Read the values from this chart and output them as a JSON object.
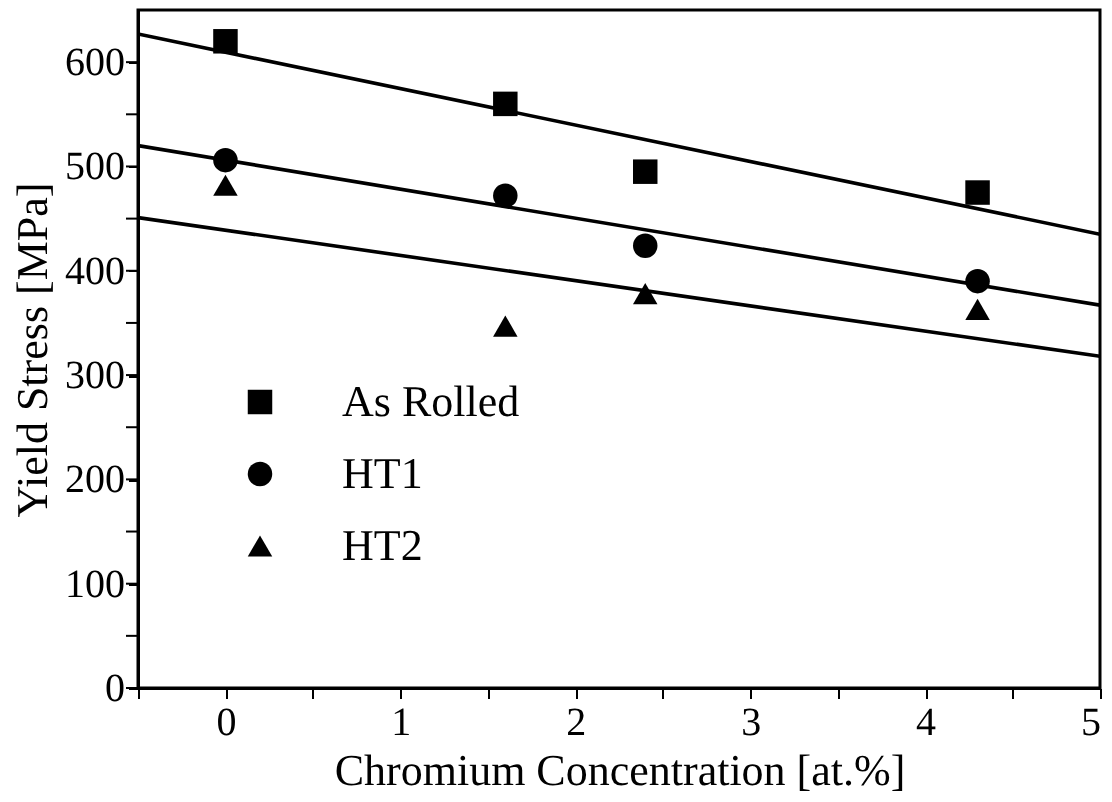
{
  "chart_data": {
    "type": "scatter",
    "xlabel": "Chromium Concentration [at.%]",
    "ylabel": "Yield Stress [MPa]",
    "xlim": [
      -0.5,
      5
    ],
    "ylim": [
      0,
      650
    ],
    "xticks": [
      {
        "value": -0.5,
        "label": null
      },
      0,
      {
        "value": 0.5,
        "label": null
      },
      1,
      {
        "value": 1.5,
        "label": null
      },
      2,
      {
        "value": 2.5,
        "label": null
      },
      3,
      {
        "value": 3.5,
        "label": null
      },
      4,
      {
        "value": 4.5,
        "label": null
      },
      5
    ],
    "yticks": [
      0,
      {
        "value": 50,
        "label": null
      },
      100,
      {
        "value": 150,
        "label": null
      },
      200,
      {
        "value": 250,
        "label": null
      },
      300,
      {
        "value": 350,
        "label": null
      },
      400,
      {
        "value": 450,
        "label": null
      },
      500,
      {
        "value": 550,
        "label": null
      },
      600
    ],
    "legend": "bottom left",
    "grid": false,
    "series": [
      {
        "name": "As Rolled",
        "color": "#000000",
        "marker": "square",
        "x": [
          0,
          1.6,
          2.4,
          4.3
        ],
        "values": [
          620,
          560,
          495,
          475
        ]
      },
      {
        "name": "HT1",
        "color": "#000000",
        "marker": "circle",
        "x": [
          0,
          1.6,
          2.4,
          4.3
        ],
        "values": [
          506,
          472,
          424,
          390
        ]
      },
      {
        "name": "HT2",
        "color": "#000000",
        "marker": "triangle",
        "x": [
          0,
          1.6,
          2.4,
          4.3
        ],
        "values": [
          482,
          347,
          378,
          363
        ]
      },
      {
        "type": "line",
        "color": "#000000",
        "marker": "none",
        "x": [
          -0.5,
          5
        ],
        "values": [
          627,
          435
        ]
      },
      {
        "type": "line",
        "color": "#000000",
        "marker": "none",
        "x": [
          -0.5,
          5
        ],
        "values": [
          520,
          367
        ]
      },
      {
        "type": "line",
        "color": "#000000",
        "marker": "none",
        "x": [
          -0.5,
          5
        ],
        "values": [
          451,
          318
        ]
      }
    ]
  }
}
